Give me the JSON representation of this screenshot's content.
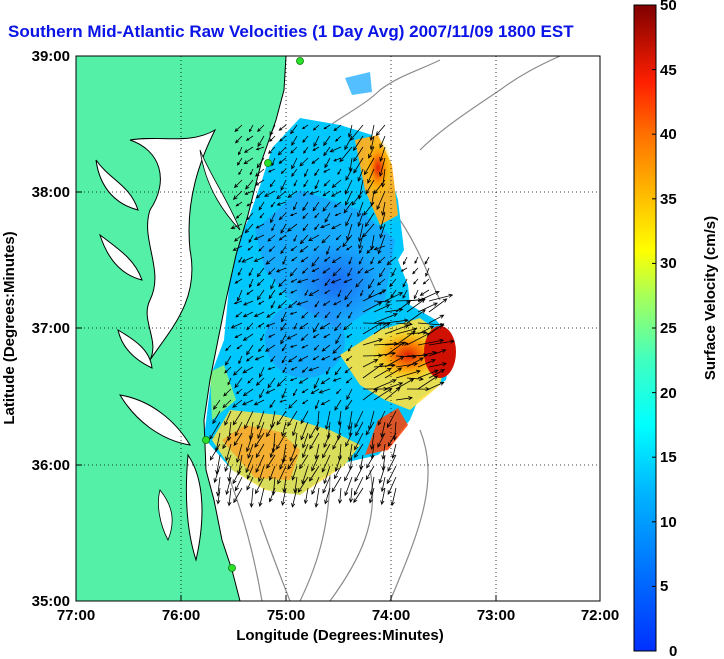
{
  "title": "Southern Mid-Atlantic Raw Velocities (1 Day Avg) 2007/11/09 1800 EST",
  "map": {
    "x_axis": {
      "label": "Longitude (Degrees:Minutes)",
      "ticks": [
        "77:00",
        "76:00",
        "75:00",
        "74:00",
        "73:00",
        "72:00"
      ]
    },
    "y_axis": {
      "label": "Latitude (Degrees:Minutes)",
      "ticks": [
        "39:00",
        "38:00",
        "37:00",
        "36:00",
        "35:00"
      ]
    },
    "grid": "dotted",
    "land_color": "#55f0a8",
    "water_color": "#ffffff",
    "coastline_color": "#000000",
    "bathymetry_color": "#8c8c8c",
    "station_marker_color": "#2be22b"
  },
  "colorbar": {
    "label": "Surface Velocity (cm/s)",
    "ticks": [
      "50",
      "45",
      "40",
      "35",
      "30",
      "25",
      "20",
      "15",
      "10",
      "5",
      "0"
    ],
    "range": [
      0,
      50
    ],
    "colormap": "jet",
    "colors": [
      "#0000b0",
      "#0050ff",
      "#00c8ff",
      "#40ffc0",
      "#c0ff40",
      "#ffd000",
      "#ff6000",
      "#e00000",
      "#800000"
    ]
  }
}
